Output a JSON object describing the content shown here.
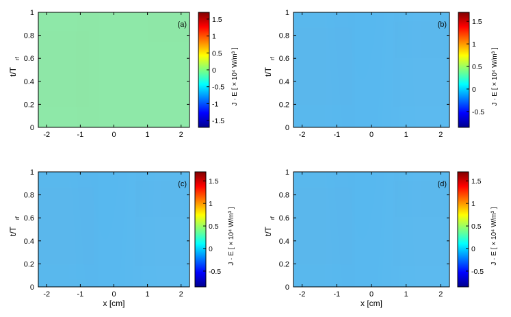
{
  "chart_data": [
    {
      "type": "heatmap",
      "panel_label": "(a)",
      "xlim": [
        -2.25,
        2.25
      ],
      "ylim": [
        0,
        1
      ],
      "x_ticks": [
        "-2",
        "-1",
        "0",
        "1",
        "2"
      ],
      "y_ticks": [
        "0",
        "0.2",
        "0.4",
        "0.6",
        "0.8",
        "1"
      ],
      "xlabel": "",
      "ylabel_main": "t/T",
      "ylabel_sub": "rf",
      "colorbar": {
        "label": "J · E [ × 10⁴ W/m³ ]",
        "range": [
          -1.7,
          1.7
        ],
        "ticks": [
          "-1.5",
          "-1",
          "-0.5",
          "0",
          "0.5",
          "1",
          "1.5"
        ],
        "tick_values": [
          -1.5,
          -1,
          -0.5,
          0,
          0.5,
          1,
          1.5
        ]
      }
    },
    {
      "type": "heatmap",
      "panel_label": "(b)",
      "xlim": [
        -2.25,
        2.25
      ],
      "ylim": [
        0,
        1
      ],
      "x_ticks": [
        "-2",
        "-1",
        "0",
        "1",
        "2"
      ],
      "y_ticks": [
        "0",
        "0.2",
        "0.4",
        "0.6",
        "0.8",
        "1"
      ],
      "xlabel": "",
      "ylabel_main": "t/T",
      "ylabel_sub": "rf",
      "colorbar": {
        "label": "J · E [ × 10⁴ W/m³ ]",
        "range": [
          -0.85,
          1.7
        ],
        "ticks": [
          "-0.5",
          "0",
          "0.5",
          "1",
          "1.5"
        ],
        "tick_values": [
          -0.5,
          0,
          0.5,
          1,
          1.5
        ]
      }
    },
    {
      "type": "heatmap",
      "panel_label": "(c)",
      "xlim": [
        -2.25,
        2.25
      ],
      "ylim": [
        0,
        1
      ],
      "x_ticks": [
        "-2",
        "-1",
        "0",
        "1",
        "2"
      ],
      "y_ticks": [
        "0",
        "0.2",
        "0.4",
        "0.6",
        "0.8",
        "1"
      ],
      "xlabel": "x [cm]",
      "ylabel_main": "t/T",
      "ylabel_sub": "rf",
      "colorbar": {
        "label": "J · E [ × 10⁴ W/m³ ]",
        "range": [
          -0.85,
          1.7
        ],
        "ticks": [
          "-0.5",
          "0",
          "0.5",
          "1",
          "1.5"
        ],
        "tick_values": [
          -0.5,
          0,
          0.5,
          1,
          1.5
        ]
      }
    },
    {
      "type": "heatmap",
      "panel_label": "(d)",
      "xlim": [
        -2.25,
        2.25
      ],
      "ylim": [
        0,
        1
      ],
      "x_ticks": [
        "-2",
        "-1",
        "0",
        "1",
        "2"
      ],
      "y_ticks": [
        "0",
        "0.2",
        "0.4",
        "0.6",
        "0.8",
        "1"
      ],
      "xlabel": "x [cm]",
      "ylabel_main": "t/T",
      "ylabel_sub": "rf",
      "colorbar": {
        "label": "J · E [ × 10⁴ W/m³ ]",
        "range": [
          -0.85,
          1.7
        ],
        "ticks": [
          "-0.5",
          "0",
          "0.5",
          "1",
          "1.5"
        ],
        "tick_values": [
          -0.5,
          0,
          0.5,
          1,
          1.5
        ]
      }
    }
  ]
}
